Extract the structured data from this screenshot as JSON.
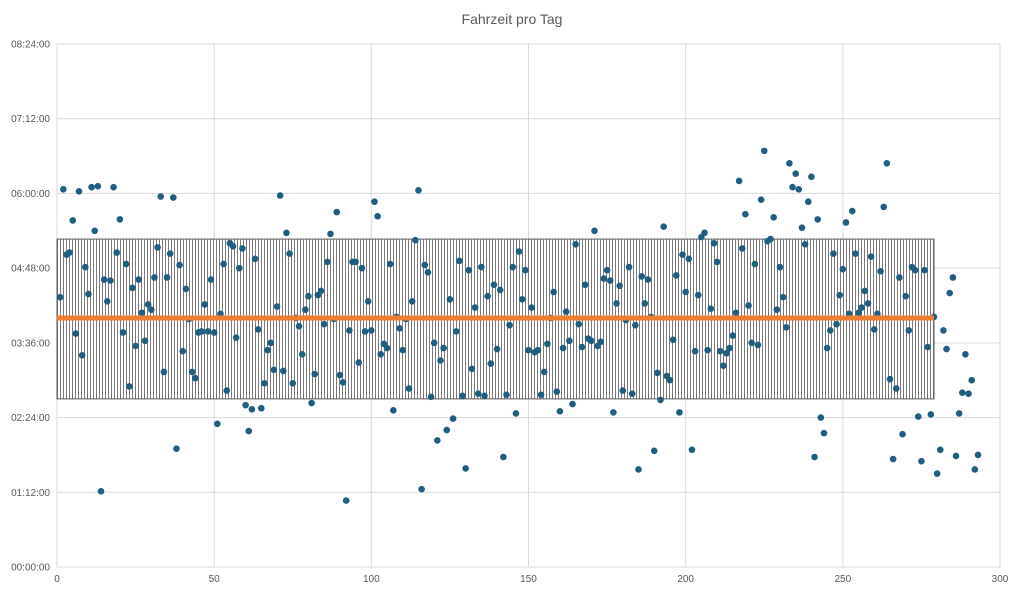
{
  "chart_data": {
    "type": "scatter",
    "title": "Fahrzeit pro Tag",
    "xlabel": "",
    "ylabel": "",
    "xlim": [
      0,
      300
    ],
    "ylim_minutes": [
      0,
      504
    ],
    "x_ticks": [
      0,
      50,
      100,
      150,
      200,
      250,
      300
    ],
    "y_tick_labels": [
      "00:00:00",
      "01:12:00",
      "02:24:00",
      "03:36:00",
      "04:48:00",
      "06:00:00",
      "07:12:00",
      "08:24:00"
    ],
    "y_ticks_minutes": [
      0,
      72,
      144,
      216,
      288,
      360,
      432,
      504
    ],
    "grid": true,
    "legend": "none",
    "colors": {
      "points": "#1f5e7e",
      "mean_line": "#ed7d31",
      "band_hatch": "#595959",
      "grid": "#d9d9d9"
    },
    "mean_line_minutes": 240,
    "band_minutes": [
      162,
      316
    ],
    "band_xlim": [
      0,
      279
    ],
    "series": [
      {
        "y_minutes": [
          260,
          364,
          301,
          303,
          334,
          225,
          362,
          204,
          289,
          263,
          366,
          324,
          367,
          73,
          277,
          256,
          276,
          366,
          303,
          335,
          226,
          292,
          174,
          269,
          213,
          277,
          245,
          218,
          253,
          248,
          279,
          308,
          357,
          188,
          279,
          302,
          356,
          114,
          291,
          208,
          268,
          239,
          188,
          182,
          226,
          227,
          253,
          227,
          277,
          226,
          138,
          244,
          292,
          170,
          312,
          309,
          221,
          288,
          307,
          156,
          131,
          152,
          297,
          229,
          153,
          177,
          209,
          216,
          190,
          251,
          358,
          189,
          322,
          302,
          177,
          240,
          232,
          205,
          248,
          261,
          158,
          186,
          262,
          266,
          234,
          294,
          321,
          239,
          342,
          185,
          178,
          64,
          228,
          294,
          294,
          197,
          288,
          227,
          256,
          228,
          352,
          338,
          205,
          215,
          211,
          292,
          151,
          241,
          230,
          209,
          239,
          172,
          256,
          315,
          363,
          75,
          291,
          284,
          164,
          216,
          122,
          199,
          211,
          132,
          258,
          143,
          227,
          295,
          165,
          95,
          286,
          191,
          250,
          167,
          289,
          165,
          261,
          196,
          272,
          210,
          267,
          106,
          166,
          233,
          289,
          148,
          304,
          258,
          286,
          209,
          250,
          207,
          209,
          166,
          188,
          215,
          240,
          265,
          169,
          150,
          211,
          246,
          218,
          157,
          311,
          234,
          212,
          272,
          220,
          218,
          324,
          213,
          217,
          278,
          286,
          276,
          149,
          254,
          271,
          170,
          238,
          289,
          167,
          233,
          94,
          280,
          254,
          277,
          241,
          112,
          187,
          161,
          328,
          184,
          180,
          219,
          281,
          149,
          301,
          265,
          297,
          113,
          208,
          262,
          318,
          322,
          209,
          249,
          312,
          294,
          208,
          194,
          206,
          211,
          223,
          245,
          372,
          307,
          340,
          252,
          216,
          292,
          214,
          354,
          401,
          314,
          316,
          337,
          248,
          289,
          260,
          231,
          389,
          366,
          379,
          364,
          327,
          311,
          352,
          376,
          106,
          335,
          144,
          129,
          211,
          228,
          302,
          234,
          262,
          287,
          332,
          244,
          343,
          302,
          245,
          250,
          266,
          254,
          299,
          229,
          244,
          285,
          347,
          389,
          181,
          104,
          172,
          279,
          128,
          261,
          228,
          289,
          286,
          145,
          102,
          286,
          212,
          147,
          241,
          90,
          113,
          228,
          210,
          264,
          279,
          107,
          148,
          168,
          205,
          167,
          180,
          94,
          108
        ]
      }
    ]
  }
}
